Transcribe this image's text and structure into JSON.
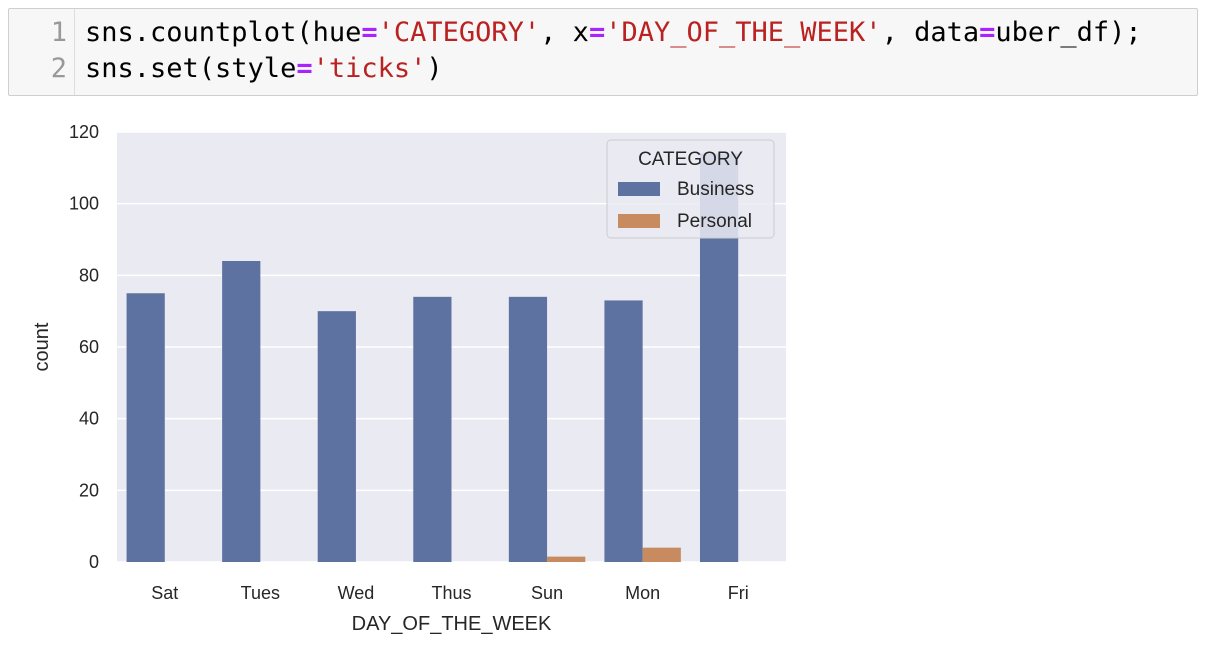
{
  "code_cell": {
    "line_numbers": [
      "1",
      "2"
    ],
    "line1": [
      {
        "text": "sns.countplot(hue",
        "kind": "plain"
      },
      {
        "text": "=",
        "kind": "op"
      },
      {
        "text": "'CATEGORY'",
        "kind": "str"
      },
      {
        "text": ", x",
        "kind": "plain"
      },
      {
        "text": "=",
        "kind": "op"
      },
      {
        "text": "'DAY_OF_THE_WEEK'",
        "kind": "str"
      },
      {
        "text": ", data",
        "kind": "plain"
      },
      {
        "text": "=",
        "kind": "op"
      },
      {
        "text": "uber_df);",
        "kind": "plain"
      }
    ],
    "line2": [
      {
        "text": "sns.set(style",
        "kind": "plain"
      },
      {
        "text": "=",
        "kind": "op"
      },
      {
        "text": "'ticks'",
        "kind": "str"
      },
      {
        "text": ")",
        "kind": "plain"
      }
    ]
  },
  "chart_data": {
    "type": "bar",
    "xlabel": "DAY_OF_THE_WEEK",
    "ylabel": "count",
    "categories": [
      "Sat",
      "Tues",
      "Wed",
      "Thus",
      "Sun",
      "Mon",
      "Fri"
    ],
    "series": [
      {
        "name": "Business",
        "color": "#5e72a2",
        "values": [
          75,
          84,
          70,
          74,
          74,
          73,
          114
        ]
      },
      {
        "name": "Personal",
        "color": "#c88b60",
        "values": [
          0,
          0,
          0,
          0,
          1.5,
          4,
          0
        ]
      }
    ],
    "ylim": [
      0,
      120
    ],
    "yticks": [
      0,
      20,
      40,
      60,
      80,
      100,
      120
    ],
    "legend": {
      "title": "CATEGORY",
      "placement": "upper right"
    },
    "grid": true,
    "colors": {
      "axes_bg": "#eaeaf2",
      "grid": "#ffffff"
    }
  }
}
